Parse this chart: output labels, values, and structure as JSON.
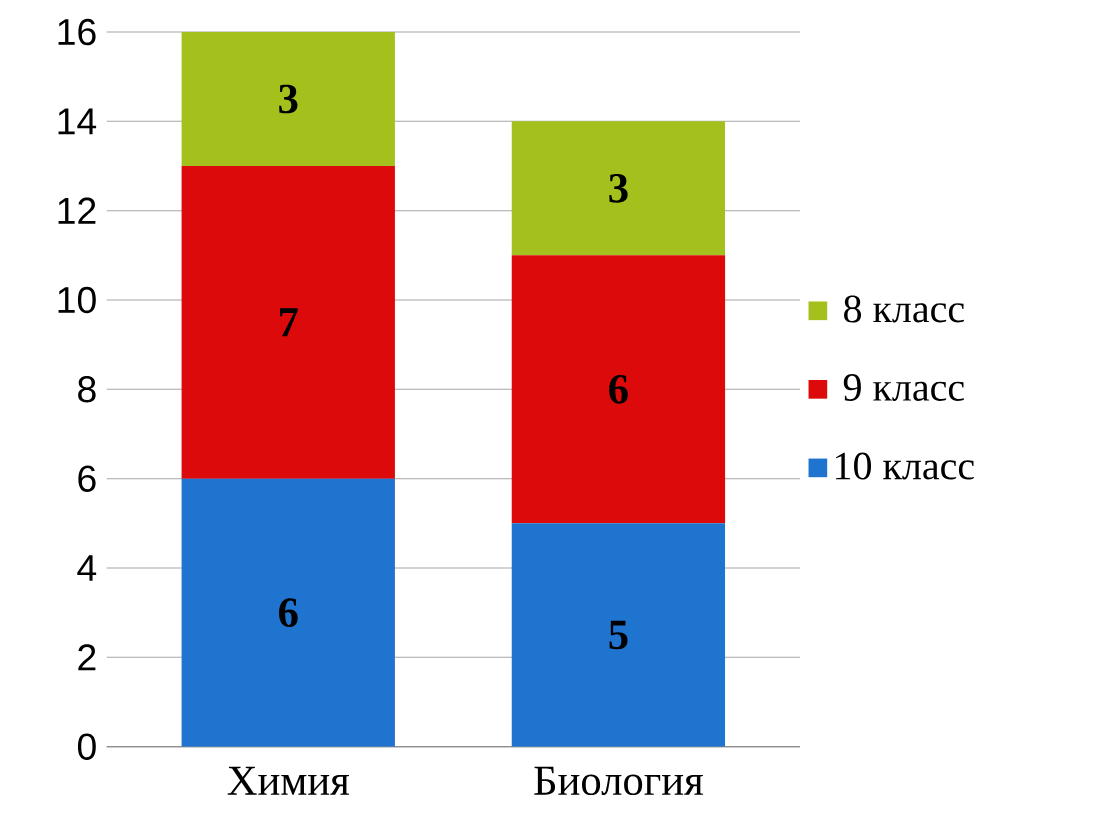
{
  "chart_data": {
    "type": "bar",
    "stacked": true,
    "categories": [
      "Химия",
      "Биология"
    ],
    "series": [
      {
        "name": "10 класс",
        "color": "#1f74d0",
        "values": [
          6,
          5
        ]
      },
      {
        "name": "9 класс",
        "color": "#dc0a0a",
        "values": [
          7,
          6
        ]
      },
      {
        "name": "8 класс",
        "color": "#a4c01c",
        "values": [
          3,
          3
        ]
      }
    ],
    "ylim": [
      0,
      16
    ],
    "yticks": [
      0,
      2,
      4,
      6,
      8,
      10,
      12,
      14,
      16
    ],
    "grid": "y",
    "legend": "right",
    "data_labels": true
  }
}
